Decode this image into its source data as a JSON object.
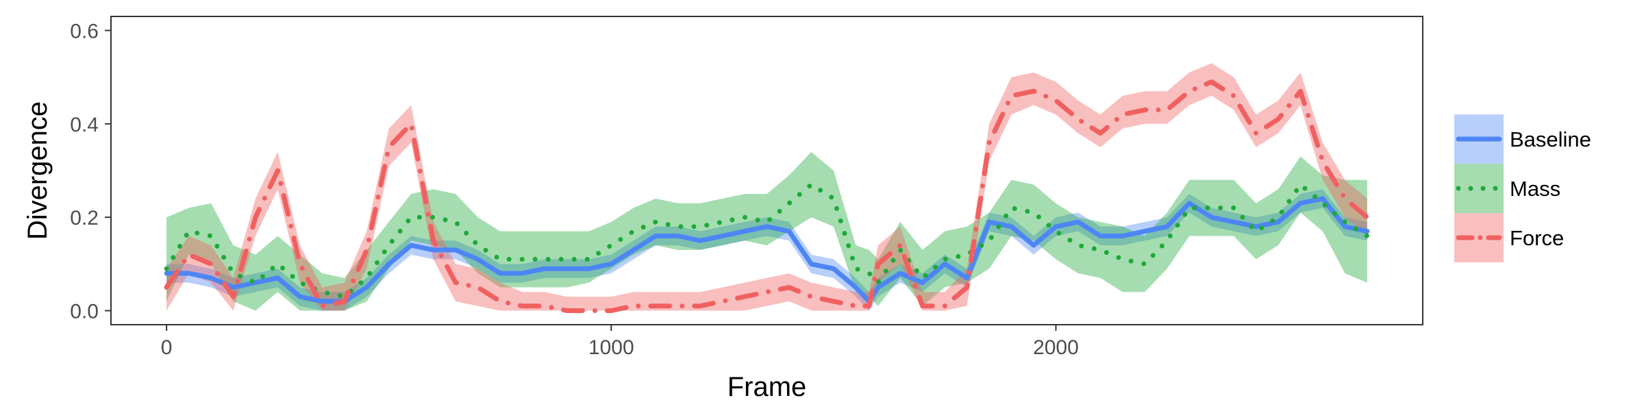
{
  "chart_data": {
    "type": "line",
    "title": "",
    "xlabel": "Frame",
    "ylabel": "Divergence",
    "xlim": [
      -125,
      2825
    ],
    "ylim": [
      -0.03,
      0.63
    ],
    "xticks": [
      0,
      1000,
      2000
    ],
    "xtick_labels": [
      "0",
      "1000",
      "2000"
    ],
    "yticks": [
      0.0,
      0.2,
      0.4,
      0.6
    ],
    "ytick_labels": [
      "0.0",
      "0.2",
      "0.4",
      "0.6"
    ],
    "grid": false,
    "legend_position": "right",
    "series": [
      {
        "name": "Baseline",
        "color": "#4d86f4",
        "dash": "solid",
        "x": [
          0,
          50,
          100,
          150,
          200,
          250,
          300,
          350,
          400,
          450,
          500,
          550,
          600,
          650,
          700,
          750,
          800,
          850,
          900,
          950,
          1000,
          1050,
          1100,
          1150,
          1200,
          1250,
          1300,
          1350,
          1400,
          1450,
          1500,
          1550,
          1580,
          1600,
          1650,
          1700,
          1750,
          1800,
          1850,
          1900,
          1950,
          2000,
          2050,
          2100,
          2150,
          2200,
          2250,
          2300,
          2350,
          2400,
          2450,
          2500,
          2550,
          2600,
          2650,
          2700
        ],
        "y": [
          0.08,
          0.08,
          0.07,
          0.05,
          0.06,
          0.07,
          0.03,
          0.02,
          0.02,
          0.05,
          0.1,
          0.14,
          0.13,
          0.13,
          0.11,
          0.08,
          0.08,
          0.09,
          0.09,
          0.09,
          0.1,
          0.13,
          0.16,
          0.16,
          0.15,
          0.16,
          0.17,
          0.18,
          0.17,
          0.1,
          0.09,
          0.05,
          0.02,
          0.05,
          0.08,
          0.06,
          0.1,
          0.07,
          0.19,
          0.18,
          0.14,
          0.18,
          0.19,
          0.16,
          0.16,
          0.17,
          0.18,
          0.23,
          0.2,
          0.19,
          0.18,
          0.19,
          0.23,
          0.24,
          0.18,
          0.17
        ],
        "lower": [
          0.06,
          0.06,
          0.05,
          0.03,
          0.04,
          0.05,
          0.01,
          0.0,
          0.0,
          0.03,
          0.08,
          0.12,
          0.11,
          0.11,
          0.09,
          0.06,
          0.06,
          0.07,
          0.07,
          0.07,
          0.08,
          0.11,
          0.14,
          0.14,
          0.13,
          0.14,
          0.15,
          0.16,
          0.15,
          0.08,
          0.07,
          0.03,
          0.0,
          0.03,
          0.06,
          0.04,
          0.08,
          0.05,
          0.17,
          0.16,
          0.12,
          0.16,
          0.17,
          0.14,
          0.14,
          0.15,
          0.16,
          0.21,
          0.18,
          0.17,
          0.16,
          0.17,
          0.21,
          0.22,
          0.16,
          0.15
        ],
        "upper": [
          0.1,
          0.1,
          0.09,
          0.07,
          0.08,
          0.09,
          0.05,
          0.04,
          0.04,
          0.07,
          0.12,
          0.16,
          0.15,
          0.15,
          0.13,
          0.1,
          0.1,
          0.11,
          0.11,
          0.11,
          0.12,
          0.15,
          0.18,
          0.18,
          0.17,
          0.18,
          0.19,
          0.2,
          0.19,
          0.12,
          0.11,
          0.07,
          0.04,
          0.07,
          0.1,
          0.08,
          0.12,
          0.09,
          0.21,
          0.2,
          0.16,
          0.2,
          0.21,
          0.18,
          0.18,
          0.19,
          0.2,
          0.25,
          0.22,
          0.21,
          0.2,
          0.21,
          0.25,
          0.26,
          0.2,
          0.19
        ]
      },
      {
        "name": "Mass",
        "color": "#1ea93a",
        "dash": "dotted",
        "x": [
          0,
          50,
          100,
          150,
          200,
          250,
          300,
          350,
          400,
          450,
          500,
          550,
          600,
          650,
          700,
          750,
          800,
          850,
          900,
          950,
          1000,
          1050,
          1100,
          1150,
          1200,
          1250,
          1300,
          1350,
          1400,
          1450,
          1500,
          1550,
          1580,
          1600,
          1650,
          1700,
          1750,
          1800,
          1850,
          1900,
          1950,
          2000,
          2050,
          2100,
          2150,
          2200,
          2250,
          2300,
          2350,
          2400,
          2450,
          2500,
          2550,
          2600,
          2650,
          2700
        ],
        "y": [
          0.09,
          0.17,
          0.16,
          0.08,
          0.06,
          0.1,
          0.06,
          0.04,
          0.03,
          0.07,
          0.14,
          0.2,
          0.2,
          0.19,
          0.14,
          0.11,
          0.11,
          0.11,
          0.11,
          0.11,
          0.14,
          0.17,
          0.19,
          0.18,
          0.18,
          0.19,
          0.2,
          0.19,
          0.23,
          0.27,
          0.24,
          0.09,
          0.08,
          0.06,
          0.13,
          0.07,
          0.11,
          0.12,
          0.15,
          0.22,
          0.21,
          0.17,
          0.14,
          0.13,
          0.11,
          0.1,
          0.15,
          0.22,
          0.22,
          0.22,
          0.17,
          0.2,
          0.27,
          0.23,
          0.19,
          0.16
        ],
        "lower": [
          0.02,
          0.12,
          0.1,
          0.02,
          0.0,
          0.04,
          0.0,
          0.0,
          0.0,
          0.02,
          0.09,
          0.15,
          0.14,
          0.13,
          0.08,
          0.05,
          0.05,
          0.05,
          0.05,
          0.06,
          0.09,
          0.12,
          0.14,
          0.13,
          0.13,
          0.14,
          0.15,
          0.14,
          0.17,
          0.2,
          0.18,
          0.04,
          0.03,
          0.01,
          0.07,
          0.01,
          0.05,
          0.06,
          0.09,
          0.16,
          0.15,
          0.11,
          0.08,
          0.07,
          0.04,
          0.04,
          0.09,
          0.16,
          0.16,
          0.16,
          0.11,
          0.14,
          0.21,
          0.17,
          0.08,
          0.06
        ],
        "upper": [
          0.2,
          0.22,
          0.23,
          0.14,
          0.12,
          0.16,
          0.12,
          0.08,
          0.07,
          0.13,
          0.19,
          0.25,
          0.26,
          0.25,
          0.2,
          0.17,
          0.17,
          0.17,
          0.17,
          0.17,
          0.19,
          0.22,
          0.24,
          0.23,
          0.23,
          0.24,
          0.25,
          0.25,
          0.29,
          0.34,
          0.3,
          0.14,
          0.13,
          0.11,
          0.19,
          0.13,
          0.17,
          0.18,
          0.21,
          0.28,
          0.27,
          0.23,
          0.2,
          0.19,
          0.18,
          0.16,
          0.21,
          0.28,
          0.28,
          0.28,
          0.23,
          0.26,
          0.33,
          0.29,
          0.28,
          0.28
        ]
      },
      {
        "name": "Force",
        "color": "#f16060",
        "dash": "dashdot",
        "x": [
          0,
          50,
          100,
          150,
          200,
          250,
          300,
          350,
          400,
          450,
          500,
          550,
          600,
          650,
          700,
          750,
          800,
          850,
          900,
          950,
          1000,
          1050,
          1100,
          1150,
          1200,
          1250,
          1300,
          1350,
          1400,
          1450,
          1500,
          1550,
          1580,
          1600,
          1650,
          1700,
          1750,
          1800,
          1850,
          1900,
          1950,
          2000,
          2050,
          2100,
          2150,
          2200,
          2250,
          2300,
          2350,
          2400,
          2450,
          2500,
          2550,
          2600,
          2650,
          2700
        ],
        "y": [
          0.05,
          0.12,
          0.1,
          0.03,
          0.2,
          0.3,
          0.1,
          0.01,
          0.02,
          0.13,
          0.35,
          0.4,
          0.15,
          0.06,
          0.05,
          0.02,
          0.01,
          0.01,
          0.0,
          0.0,
          0.0,
          0.01,
          0.01,
          0.01,
          0.01,
          0.02,
          0.03,
          0.04,
          0.05,
          0.03,
          0.02,
          0.01,
          0.01,
          0.1,
          0.14,
          0.01,
          0.01,
          0.05,
          0.36,
          0.46,
          0.47,
          0.45,
          0.41,
          0.38,
          0.42,
          0.43,
          0.43,
          0.47,
          0.49,
          0.46,
          0.38,
          0.41,
          0.47,
          0.32,
          0.24,
          0.2
        ],
        "lower": [
          0.0,
          0.08,
          0.06,
          0.0,
          0.16,
          0.26,
          0.06,
          0.0,
          0.0,
          0.09,
          0.31,
          0.36,
          0.11,
          0.02,
          0.01,
          0.0,
          0.0,
          0.0,
          0.0,
          0.0,
          0.0,
          0.0,
          0.0,
          0.0,
          0.0,
          0.0,
          0.0,
          0.01,
          0.02,
          0.0,
          0.0,
          0.0,
          0.0,
          0.06,
          0.1,
          0.0,
          0.0,
          0.01,
          0.32,
          0.42,
          0.44,
          0.42,
          0.38,
          0.35,
          0.39,
          0.4,
          0.4,
          0.44,
          0.46,
          0.43,
          0.35,
          0.38,
          0.44,
          0.28,
          0.2,
          0.16
        ],
        "upper": [
          0.09,
          0.16,
          0.14,
          0.07,
          0.24,
          0.34,
          0.14,
          0.05,
          0.06,
          0.17,
          0.39,
          0.44,
          0.19,
          0.1,
          0.09,
          0.06,
          0.04,
          0.04,
          0.03,
          0.03,
          0.03,
          0.04,
          0.04,
          0.04,
          0.04,
          0.05,
          0.06,
          0.07,
          0.08,
          0.06,
          0.05,
          0.04,
          0.04,
          0.14,
          0.18,
          0.04,
          0.04,
          0.09,
          0.4,
          0.5,
          0.51,
          0.49,
          0.45,
          0.42,
          0.46,
          0.47,
          0.47,
          0.51,
          0.53,
          0.5,
          0.42,
          0.45,
          0.51,
          0.36,
          0.28,
          0.24
        ]
      }
    ]
  }
}
